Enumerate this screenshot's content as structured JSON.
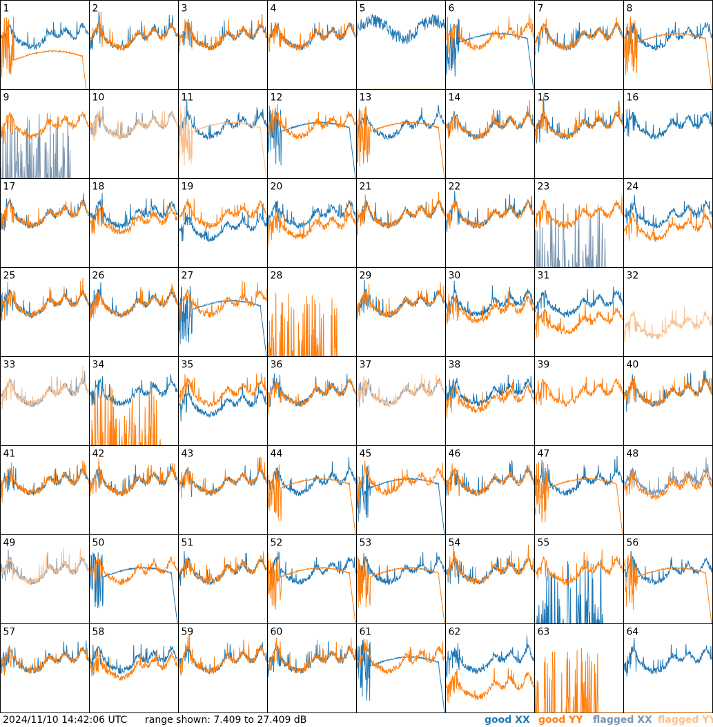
{
  "chart_data": {
    "type": "line",
    "grid": "8x8",
    "x": "frequency channel (unlabeled)",
    "ylim": [
      7.409,
      27.409
    ],
    "yunit": "dB",
    "timestamp": "2024/11/10 14:42:06 UTC",
    "range_text": "range shown: 7.409 to 27.409 dB",
    "legend": {
      "good_xx": "good XX",
      "good_yy": "good YY",
      "flagged_xx": "flagged XX",
      "flagged_yy": "flagged YY"
    },
    "colors": {
      "good_xx": "#1f77b4",
      "good_yy": "#ff7f0e",
      "flagged_xx": "#7b95b0",
      "flagged_yy": "#f9c08f"
    },
    "panels": [
      {
        "id": 1,
        "xx": "normal",
        "yy": "smooth",
        "yy_offset": -4
      },
      {
        "id": 2,
        "xx": "normal",
        "yy": "normal"
      },
      {
        "id": 3,
        "xx": "normal",
        "yy": "normal"
      },
      {
        "id": 4,
        "xx": "normal",
        "yy": "normal"
      },
      {
        "id": 5,
        "xx": "noisy",
        "yy": "flat"
      },
      {
        "id": 6,
        "xx": "smooth",
        "yy": "normal"
      },
      {
        "id": 7,
        "xx": "normal",
        "yy": "normal"
      },
      {
        "id": 8,
        "xx": "normal",
        "yy": "smooth"
      },
      {
        "id": 9,
        "xx": "spikes",
        "yy": "normal",
        "xx_flagged": true
      },
      {
        "id": 10,
        "xx": "normal",
        "yy": "normal",
        "xx_flagged": true,
        "yy_flagged": true
      },
      {
        "id": 11,
        "xx": "normal",
        "yy": "smooth",
        "yy_flagged": true
      },
      {
        "id": 12,
        "xx": "smooth",
        "yy": "normal"
      },
      {
        "id": 13,
        "xx": "normal",
        "yy": "smooth"
      },
      {
        "id": 14,
        "xx": "normal",
        "yy": "normal"
      },
      {
        "id": 15,
        "xx": "normal",
        "yy": "normal"
      },
      {
        "id": 16,
        "xx": "normal",
        "yy": "flat"
      },
      {
        "id": 17,
        "xx": "normal",
        "yy": "normal"
      },
      {
        "id": 18,
        "xx": "normal",
        "yy": "normal",
        "yy_offset": -1.5
      },
      {
        "id": 19,
        "xx": "normal",
        "yy": "normal",
        "xx_offset": -3
      },
      {
        "id": 20,
        "xx": "normal",
        "yy": "normal",
        "yy_offset": -2.5
      },
      {
        "id": 21,
        "xx": "normal",
        "yy": "normal"
      },
      {
        "id": 22,
        "xx": "normal",
        "yy": "normal"
      },
      {
        "id": 23,
        "xx": "spikes",
        "yy": "normal",
        "xx_flagged": true
      },
      {
        "id": 24,
        "xx": "normal",
        "yy": "normal",
        "yy_offset": -3
      },
      {
        "id": 25,
        "xx": "normal",
        "yy": "normal"
      },
      {
        "id": 26,
        "xx": "normal",
        "yy": "normal"
      },
      {
        "id": 27,
        "xx": "smooth",
        "yy": "normal"
      },
      {
        "id": 28,
        "xx": "flat",
        "yy": "spikes"
      },
      {
        "id": 29,
        "xx": "normal",
        "yy": "normal"
      },
      {
        "id": 30,
        "xx": "normal",
        "yy": "normal",
        "yy_offset": -1.5
      },
      {
        "id": 31,
        "xx": "normal",
        "yy": "normal",
        "yy_offset": -4
      },
      {
        "id": 32,
        "xx": "flat",
        "yy": "normal",
        "yy_flagged": true,
        "yy_offset": -5
      },
      {
        "id": 33,
        "xx": "normal",
        "yy": "normal",
        "xx_flagged": true,
        "yy_flagged": true
      },
      {
        "id": 34,
        "xx": "normal",
        "yy": "spikes"
      },
      {
        "id": 35,
        "xx": "normal",
        "yy": "normal",
        "xx_offset": -2.5
      },
      {
        "id": 36,
        "xx": "normal",
        "yy": "normal"
      },
      {
        "id": 37,
        "xx": "normal",
        "yy": "normal",
        "xx_flagged": true,
        "yy_flagged": true
      },
      {
        "id": 38,
        "xx": "normal",
        "yy": "normal",
        "yy_offset": -1.5
      },
      {
        "id": 39,
        "xx": "flat",
        "yy": "normal"
      },
      {
        "id": 40,
        "xx": "normal",
        "yy": "normal"
      },
      {
        "id": 41,
        "xx": "normal",
        "yy": "normal"
      },
      {
        "id": 42,
        "xx": "normal",
        "yy": "normal"
      },
      {
        "id": 43,
        "xx": "normal",
        "yy": "normal"
      },
      {
        "id": 44,
        "xx": "normal",
        "yy": "smooth"
      },
      {
        "id": 45,
        "xx": "smooth",
        "yy": "normal"
      },
      {
        "id": 46,
        "xx": "normal",
        "yy": "normal"
      },
      {
        "id": 47,
        "xx": "normal",
        "yy": "smooth"
      },
      {
        "id": 48,
        "xx": "normal",
        "yy": "normal",
        "xx_flagged": true,
        "yy_offset": -1
      },
      {
        "id": 49,
        "xx": "normal",
        "yy": "normal",
        "xx_flagged": true,
        "yy_flagged": true
      },
      {
        "id": 50,
        "xx": "smooth",
        "yy": "normal"
      },
      {
        "id": 51,
        "xx": "normal",
        "yy": "normal"
      },
      {
        "id": 52,
        "xx": "normal",
        "yy": "smooth"
      },
      {
        "id": 53,
        "xx": "normal",
        "yy": "smooth"
      },
      {
        "id": 54,
        "xx": "normal",
        "yy": "normal"
      },
      {
        "id": 55,
        "xx": "spikes",
        "yy": "normal"
      },
      {
        "id": 56,
        "xx": "normal",
        "yy": "smooth"
      },
      {
        "id": 57,
        "xx": "normal",
        "yy": "normal"
      },
      {
        "id": 58,
        "xx": "normal",
        "yy": "normal",
        "yy_offset": -1.5
      },
      {
        "id": 59,
        "xx": "normal",
        "yy": "normal"
      },
      {
        "id": 60,
        "xx": "normal",
        "yy": "normal"
      },
      {
        "id": 61,
        "xx": "smooth",
        "yy": "normal"
      },
      {
        "id": 62,
        "xx": "normal",
        "yy": "normal",
        "yy_offset": -6
      },
      {
        "id": 63,
        "xx": "flat",
        "yy": "spikes"
      },
      {
        "id": 64,
        "xx": "normal",
        "yy": "flat"
      }
    ]
  }
}
